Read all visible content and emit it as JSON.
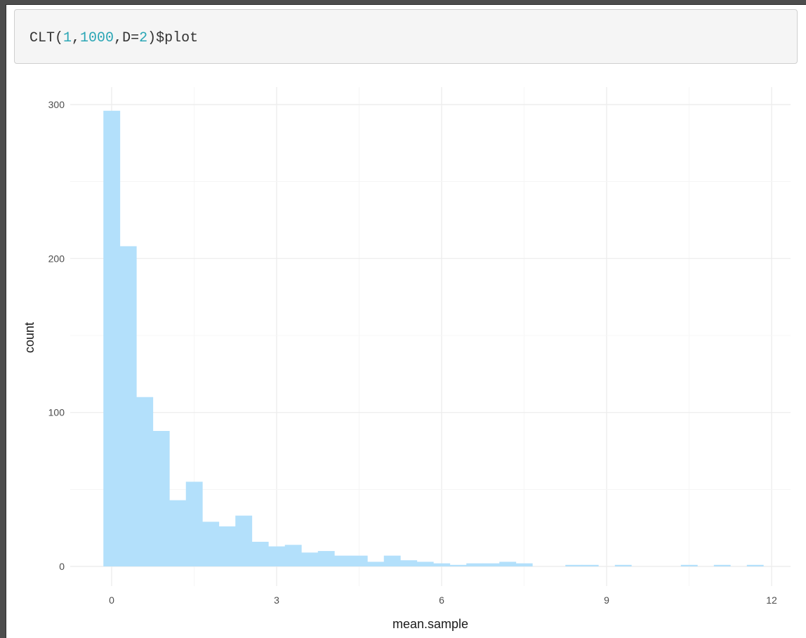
{
  "code": {
    "parts": [
      {
        "text": "CLT(",
        "kind": "plain"
      },
      {
        "text": "1",
        "kind": "num"
      },
      {
        "text": ",",
        "kind": "plain"
      },
      {
        "text": "1000",
        "kind": "num"
      },
      {
        "text": ",D=",
        "kind": "plain"
      },
      {
        "text": "2",
        "kind": "num"
      },
      {
        "text": ")$plot",
        "kind": "plain"
      }
    ]
  },
  "colors": {
    "bar_fill": "#b3e0fb",
    "grid_major": "#ebebeb",
    "grid_minor": "#f4f4f4",
    "code_number": "#2aa6b5"
  },
  "chart_data": {
    "type": "bar",
    "xlabel": "mean.sample",
    "ylabel": "count",
    "xlim": [
      -0.4,
      12.3
    ],
    "ylim": [
      0,
      315
    ],
    "x_ticks": [
      0,
      3,
      6,
      9,
      12
    ],
    "y_ticks": [
      0,
      100,
      200,
      300
    ],
    "grid": true,
    "bin_width": 0.3,
    "series": [
      {
        "bin_start": [
          -0.15,
          0.15,
          0.45,
          0.75,
          1.05,
          1.35,
          1.65,
          1.95,
          2.25,
          2.55,
          2.85,
          3.15,
          3.45,
          3.75,
          4.05,
          4.35,
          4.65,
          4.95,
          5.25,
          5.55,
          5.85,
          6.15,
          6.45,
          6.75,
          7.05,
          7.35,
          7.65,
          7.95,
          8.25,
          8.55,
          8.85,
          9.15,
          9.45,
          9.75,
          10.05,
          10.35,
          10.65,
          10.95,
          11.25,
          11.55
        ],
        "values": [
          296,
          208,
          110,
          88,
          43,
          55,
          29,
          26,
          33,
          16,
          13,
          14,
          9,
          10,
          7,
          7,
          3,
          7,
          4,
          3,
          2,
          1,
          2,
          2,
          3,
          2,
          0,
          0,
          1,
          1,
          0,
          1,
          0,
          0,
          0,
          1,
          0,
          1,
          0,
          1
        ]
      }
    ]
  }
}
